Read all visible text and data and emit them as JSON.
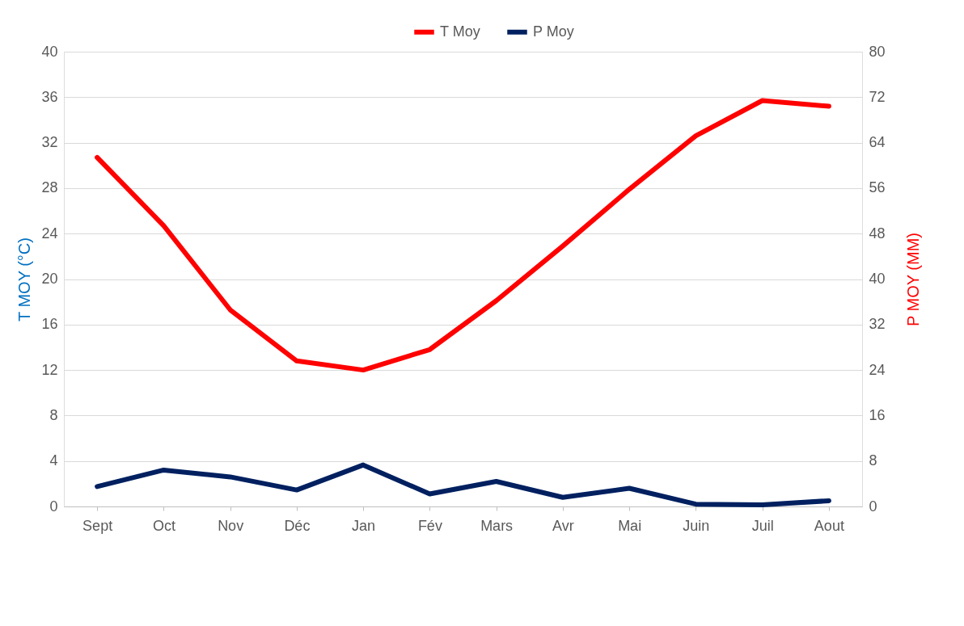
{
  "chart_data": {
    "type": "line",
    "categories": [
      "Sept",
      "Oct",
      "Nov",
      "Déc",
      "Jan",
      "Fév",
      "Mars",
      "Avr",
      "Mai",
      "Juin",
      "Juil",
      "Aout"
    ],
    "ylabel": "T MOY (°C)",
    "y2label": "P MOY (MM)",
    "ylim": [
      0,
      40
    ],
    "yticks": [
      0,
      4,
      8,
      12,
      16,
      20,
      24,
      28,
      32,
      36,
      40
    ],
    "y2lim": [
      0,
      80
    ],
    "y2ticks": [
      0,
      8,
      16,
      24,
      32,
      40,
      48,
      56,
      64,
      72,
      80
    ],
    "grid": "y",
    "legend": "top",
    "marker": "none",
    "line_style": "solid",
    "series": [
      {
        "name": "T Moy",
        "color": "#ff0000",
        "values": [
          30.7,
          24.7,
          17.3,
          12.8,
          12.0,
          13.8,
          18.1,
          22.9,
          27.9,
          32.6,
          35.7,
          35.2
        ]
      },
      {
        "name": "P Moy",
        "color": "#002060",
        "axis": "y2",
        "values": [
          3.5,
          6.4,
          5.2,
          2.9,
          7.3,
          2.2,
          4.4,
          1.6,
          3.2,
          0.4,
          0.3,
          1.0
        ]
      }
    ]
  }
}
